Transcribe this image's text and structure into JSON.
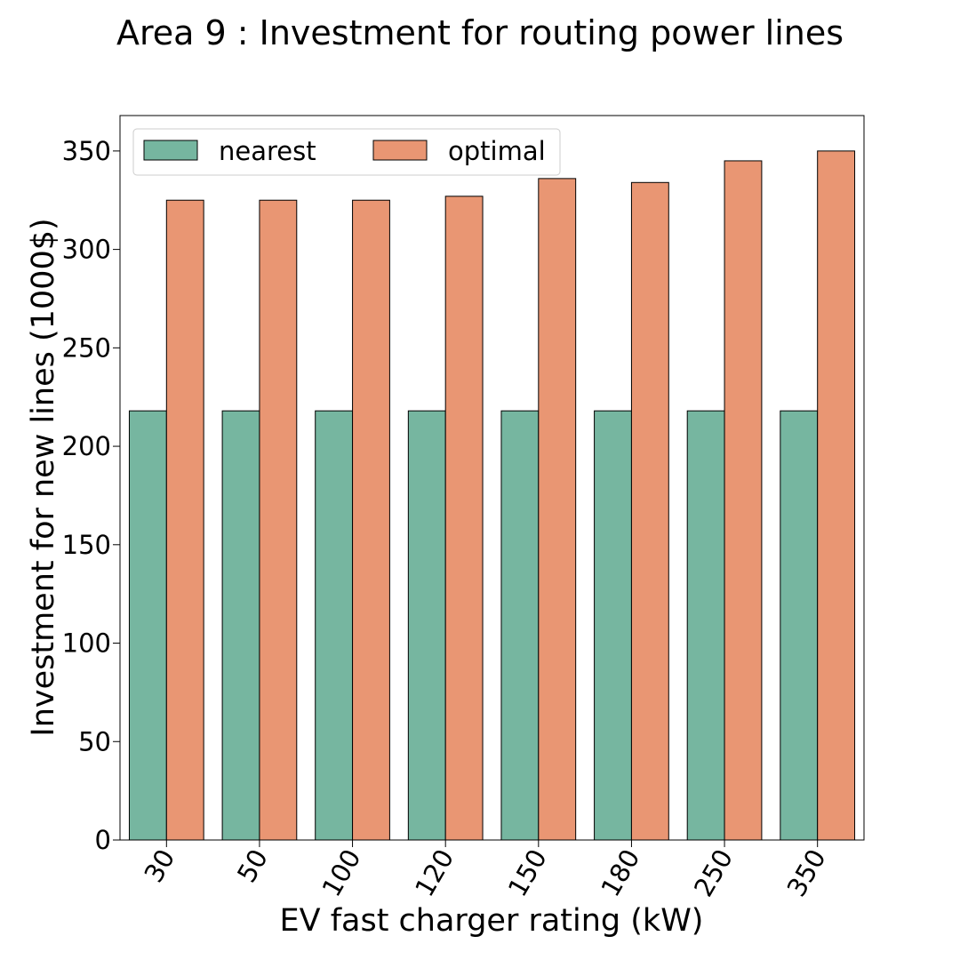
{
  "chart_data": {
    "type": "bar",
    "title": "Area 9 : Investment for routing power lines",
    "xlabel": "EV fast charger rating (kW)",
    "ylabel": "Investment for new lines (1000$)",
    "categories": [
      "30",
      "50",
      "100",
      "120",
      "150",
      "180",
      "250",
      "350"
    ],
    "series": [
      {
        "name": "nearest",
        "color": "#76b6a0",
        "values": [
          218,
          218,
          218,
          218,
          218,
          218,
          218,
          218
        ]
      },
      {
        "name": "optimal",
        "color": "#e99673",
        "values": [
          325,
          325,
          325,
          327,
          336,
          334,
          345,
          350
        ]
      }
    ],
    "ylim": [
      0,
      368
    ],
    "yticks": [
      0,
      50,
      100,
      150,
      200,
      250,
      300,
      350
    ],
    "grid": false,
    "legend": "top-left"
  }
}
